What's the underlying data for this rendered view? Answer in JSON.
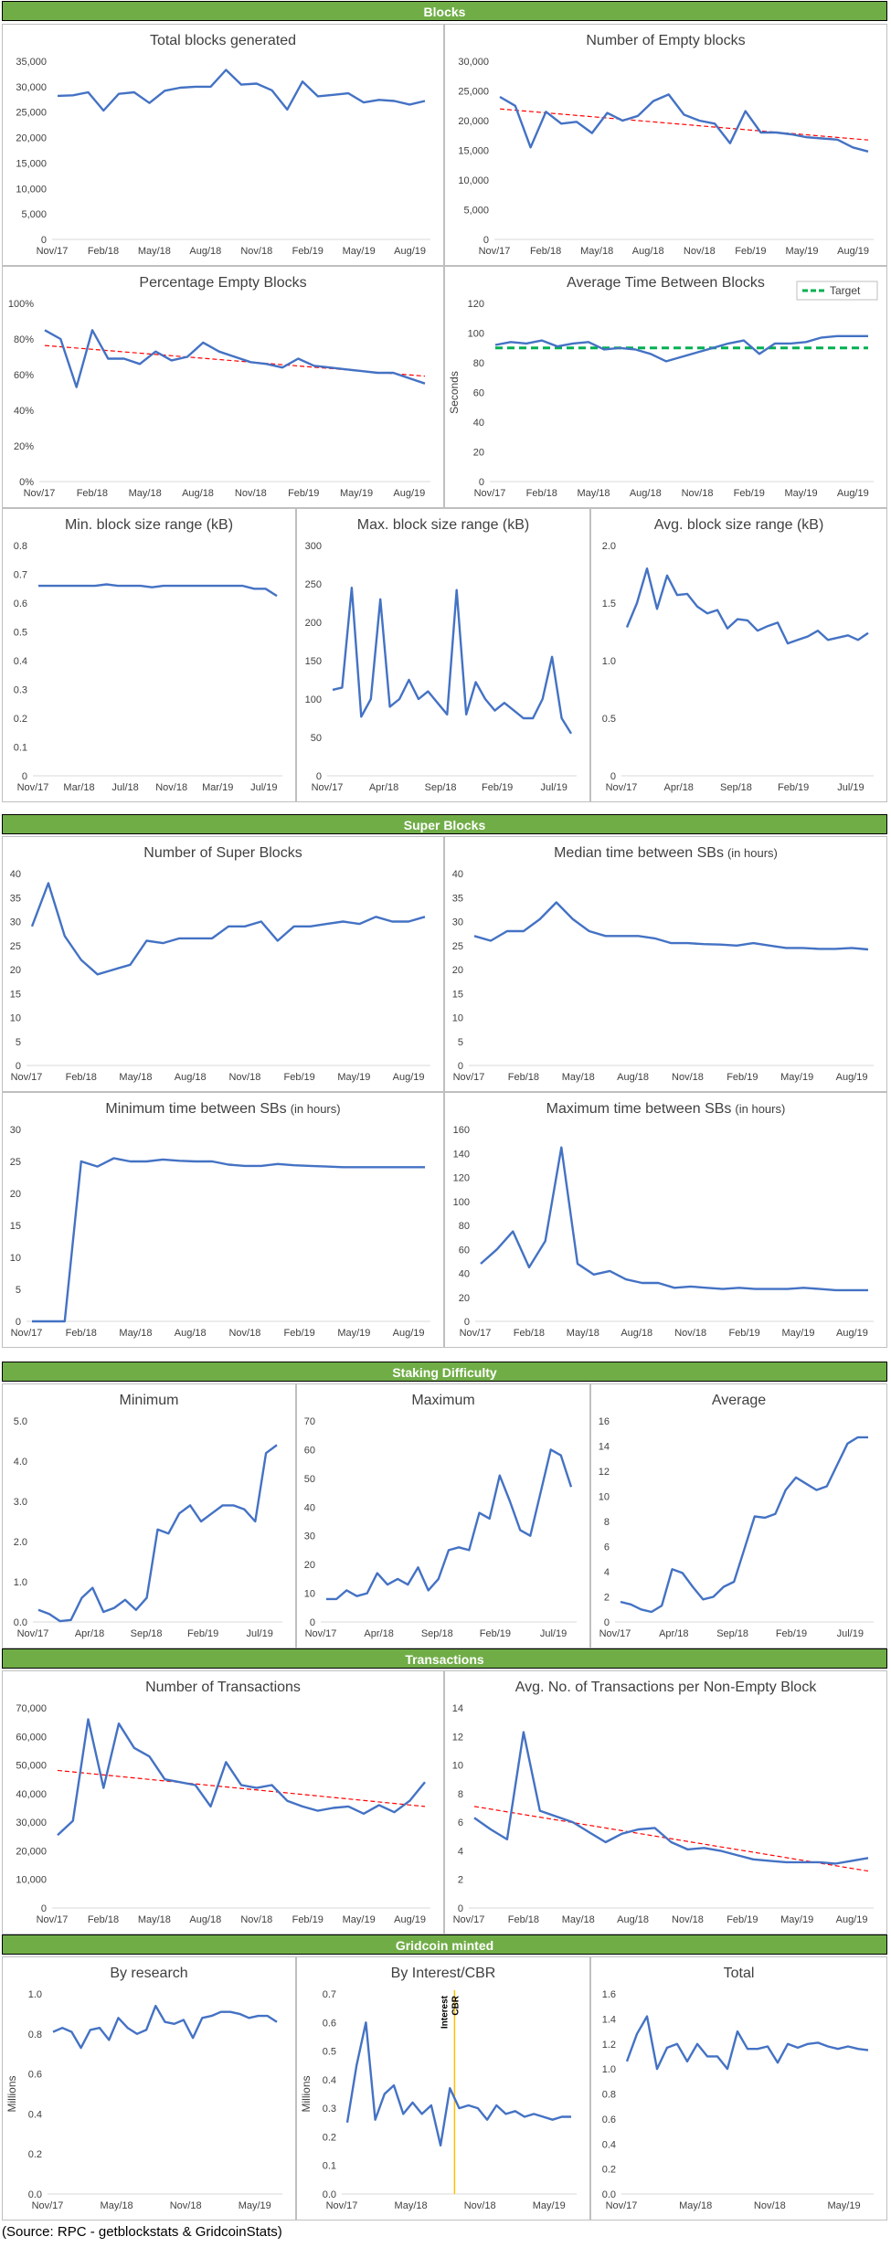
{
  "sections": [
    {
      "title": "Blocks"
    },
    {
      "title": "Super Blocks"
    },
    {
      "title": "Staking Difficulty"
    },
    {
      "title": "Transactions"
    },
    {
      "title": "Gridcoin minted"
    }
  ],
  "source": "(Source: RPC - getblockstats & GridcoinStats)",
  "colors": {
    "line": "#4472c4",
    "trend": "#ff0000",
    "target": "#00b050",
    "cbr": "#ffc000",
    "header": "#70ad47"
  },
  "chart_data": [
    {
      "id": "total_blocks",
      "type": "line",
      "title": "Total blocks generated",
      "subtitle": "",
      "ylabel": "",
      "yticks": [
        "0",
        "5,000",
        "10,000",
        "15,000",
        "20,000",
        "25,000",
        "30,000",
        "35,000"
      ],
      "ylim": [
        0,
        35000
      ],
      "xticks": [
        "Nov/17",
        "Feb/18",
        "May/18",
        "Aug/18",
        "Nov/18",
        "Feb/19",
        "May/19",
        "Aug/19"
      ],
      "trend": false,
      "values": [
        28200,
        28300,
        28900,
        25300,
        28600,
        28900,
        26800,
        29200,
        29800,
        30000,
        30000,
        33300,
        30400,
        30600,
        29300,
        25500,
        31000,
        28100,
        28400,
        28700,
        26900,
        27400,
        27200,
        26500,
        27200
      ]
    },
    {
      "id": "empty_blocks",
      "type": "line",
      "title": "Number of Empty blocks",
      "subtitle": "",
      "ylabel": "",
      "yticks": [
        "0",
        "5,000",
        "10,000",
        "15,000",
        "20,000",
        "25,000",
        "30,000"
      ],
      "ylim": [
        0,
        30000
      ],
      "xticks": [
        "Nov/17",
        "Feb/18",
        "May/18",
        "Aug/18",
        "Nov/18",
        "Feb/19",
        "May/19",
        "Aug/19"
      ],
      "trend": true,
      "values": [
        24000,
        22500,
        15500,
        21500,
        19500,
        19800,
        17900,
        21300,
        20000,
        20800,
        23300,
        24400,
        21000,
        20000,
        19500,
        16200,
        21600,
        18000,
        18000,
        17700,
        17200,
        17000,
        16800,
        15500,
        14800
      ]
    },
    {
      "id": "pct_empty",
      "type": "line",
      "title": "Percentage Empty Blocks",
      "subtitle": "",
      "ylabel": "",
      "yticks": [
        "0%",
        "20%",
        "40%",
        "60%",
        "80%",
        "100%"
      ],
      "ylim": [
        0,
        100
      ],
      "xticks": [
        "Nov/17",
        "Feb/18",
        "May/18",
        "Aug/18",
        "Nov/18",
        "Feb/19",
        "May/19",
        "Aug/19"
      ],
      "trend": true,
      "values": [
        85,
        80,
        53,
        85,
        69,
        69,
        66,
        73,
        68,
        70,
        78,
        73,
        70,
        67,
        66,
        64,
        69,
        65,
        64,
        63,
        62,
        61,
        61,
        58,
        55
      ]
    },
    {
      "id": "avg_time",
      "type": "line",
      "title": "Average Time Between Blocks",
      "subtitle": "",
      "ylabel": "Seconds",
      "yticks": [
        "0",
        "20",
        "40",
        "60",
        "80",
        "100",
        "120"
      ],
      "ylim": [
        0,
        120
      ],
      "xticks": [
        "Nov/17",
        "Feb/18",
        "May/18",
        "Aug/18",
        "Nov/18",
        "Feb/19",
        "May/19",
        "Aug/19"
      ],
      "trend": false,
      "target": 90,
      "legend": "Target",
      "values": [
        92,
        94,
        93,
        95,
        91,
        93,
        94,
        89,
        90,
        89,
        86,
        81,
        84,
        87,
        90,
        93,
        95,
        86,
        93,
        93,
        94,
        97,
        98,
        98,
        98
      ]
    },
    {
      "id": "min_block",
      "type": "line",
      "title": "Min. block size range (kB)",
      "subtitle": "",
      "ylabel": "",
      "yticks": [
        "0",
        "0.1",
        "0.2",
        "0.3",
        "0.4",
        "0.5",
        "0.6",
        "0.7",
        "0.8"
      ],
      "ylim": [
        0,
        0.8
      ],
      "xticks": [
        "Nov/17",
        "Mar/18",
        "Jul/18",
        "Nov/18",
        "Mar/19",
        "Jul/19"
      ],
      "trend": false,
      "values": [
        0.66,
        0.66,
        0.66,
        0.66,
        0.66,
        0.66,
        0.665,
        0.66,
        0.66,
        0.66,
        0.655,
        0.66,
        0.66,
        0.66,
        0.66,
        0.66,
        0.66,
        0.66,
        0.66,
        0.65,
        0.65,
        0.625
      ]
    },
    {
      "id": "max_block",
      "type": "line",
      "title": "Max. block size range (kB)",
      "subtitle": "",
      "ylabel": "",
      "yticks": [
        "0",
        "50",
        "100",
        "150",
        "200",
        "250",
        "300"
      ],
      "ylim": [
        0,
        300
      ],
      "xticks": [
        "Nov/17",
        "Apr/18",
        "Sep/18",
        "Feb/19",
        "Jul/19"
      ],
      "trend": false,
      "values": [
        112,
        115,
        245,
        77,
        100,
        230,
        90,
        100,
        125,
        100,
        110,
        95,
        80,
        242,
        80,
        122,
        100,
        85,
        95,
        85,
        75,
        75,
        100,
        155,
        75,
        55
      ]
    },
    {
      "id": "avg_block",
      "type": "line",
      "title": "Avg. block size range (kB)",
      "subtitle": "",
      "ylabel": "",
      "yticks": [
        "0",
        "0.5",
        "1.0",
        "1.5",
        "2.0"
      ],
      "ylim": [
        0,
        2.0
      ],
      "xticks": [
        "Nov/17",
        "Apr/18",
        "Sep/18",
        "Feb/19",
        "Jul/19"
      ],
      "trend": false,
      "values": [
        1.29,
        1.5,
        1.8,
        1.45,
        1.74,
        1.57,
        1.58,
        1.47,
        1.41,
        1.44,
        1.28,
        1.36,
        1.35,
        1.26,
        1.3,
        1.33,
        1.15,
        1.18,
        1.21,
        1.26,
        1.18,
        1.2,
        1.22,
        1.18,
        1.24
      ]
    },
    {
      "id": "num_sb",
      "type": "line",
      "title": "Number of Super Blocks",
      "subtitle": "",
      "ylabel": "",
      "yticks": [
        "0",
        "5",
        "10",
        "15",
        "20",
        "25",
        "30",
        "35",
        "40"
      ],
      "ylim": [
        0,
        40
      ],
      "xticks": [
        "Nov/17",
        "Feb/18",
        "May/18",
        "Aug/18",
        "Nov/18",
        "Feb/19",
        "May/19",
        "Aug/19"
      ],
      "trend": false,
      "values": [
        29,
        38,
        27,
        22,
        19,
        20,
        21,
        26,
        25.5,
        26.5,
        26.5,
        26.5,
        29,
        29,
        30,
        26,
        29,
        29,
        29.5,
        30,
        29.5,
        31,
        30,
        30,
        31
      ]
    },
    {
      "id": "median_sb",
      "type": "line",
      "title": "Median time between SBs",
      "subtitle": "(in hours)",
      "ylabel": "",
      "yticks": [
        "0",
        "5",
        "10",
        "15",
        "20",
        "25",
        "30",
        "35",
        "40"
      ],
      "ylim": [
        0,
        40
      ],
      "xticks": [
        "Nov/17",
        "Feb/18",
        "May/18",
        "Aug/18",
        "Nov/18",
        "Feb/19",
        "May/19",
        "Aug/19"
      ],
      "trend": false,
      "values": [
        27,
        26,
        28,
        28,
        30.5,
        34,
        30.5,
        28,
        27,
        27,
        27,
        26.5,
        25.5,
        25.5,
        25.3,
        25.2,
        25,
        25.5,
        25,
        24.5,
        24.5,
        24.3,
        24.3,
        24.5,
        24.2
      ]
    },
    {
      "id": "min_sb",
      "type": "line",
      "title": "Minimum time between SBs",
      "subtitle": "(in hours)",
      "ylabel": "",
      "yticks": [
        "0",
        "5",
        "10",
        "15",
        "20",
        "25",
        "30"
      ],
      "ylim": [
        0,
        30
      ],
      "xticks": [
        "Nov/17",
        "Feb/18",
        "May/18",
        "Aug/18",
        "Nov/18",
        "Feb/19",
        "May/19",
        "Aug/19"
      ],
      "trend": false,
      "values": [
        0,
        0,
        0,
        25,
        24.2,
        25.5,
        25,
        25,
        25.3,
        25.1,
        25,
        25,
        24.5,
        24.3,
        24.3,
        24.6,
        24.4,
        24.3,
        24.2,
        24.1,
        24.1,
        24.1,
        24.1,
        24.1,
        24.1
      ]
    },
    {
      "id": "max_sb",
      "type": "line",
      "title": "Maximum time  between SBs",
      "subtitle": "(in hours)",
      "ylabel": "",
      "yticks": [
        "0",
        "20",
        "40",
        "60",
        "80",
        "100",
        "120",
        "140",
        "160"
      ],
      "ylim": [
        0,
        160
      ],
      "xticks": [
        "Nov/17",
        "Feb/18",
        "May/18",
        "Aug/18",
        "Nov/18",
        "Feb/19",
        "May/19",
        "Aug/19"
      ],
      "trend": false,
      "values": [
        48,
        60,
        75,
        45,
        67,
        145,
        48,
        39,
        42,
        35,
        32,
        32,
        28,
        29,
        28,
        27,
        28,
        27,
        27,
        27,
        28,
        27,
        26,
        26,
        26
      ]
    },
    {
      "id": "stake_min",
      "type": "line",
      "title": "Minimum",
      "subtitle": "",
      "ylabel": "",
      "yticks": [
        "0.0",
        "1.0",
        "2.0",
        "3.0",
        "4.0",
        "5.0"
      ],
      "ylim": [
        0,
        5.0
      ],
      "xticks": [
        "Nov/17",
        "Apr/18",
        "Sep/18",
        "Feb/19",
        "Jul/19"
      ],
      "trend": false,
      "values": [
        0.3,
        0.2,
        0.02,
        0.05,
        0.6,
        0.85,
        0.25,
        0.35,
        0.55,
        0.3,
        0.6,
        2.3,
        2.2,
        2.7,
        2.9,
        2.5,
        2.7,
        2.9,
        2.9,
        2.8,
        2.5,
        4.2,
        4.4
      ]
    },
    {
      "id": "stake_max",
      "type": "line",
      "title": "Maximum",
      "subtitle": "",
      "ylabel": "",
      "yticks": [
        "0",
        "10",
        "20",
        "30",
        "40",
        "50",
        "60",
        "70"
      ],
      "ylim": [
        0,
        70
      ],
      "xticks": [
        "Nov/17",
        "Apr/18",
        "Sep/18",
        "Feb/19",
        "Jul/19"
      ],
      "trend": false,
      "values": [
        8,
        8,
        11,
        9,
        10,
        17,
        13,
        15,
        13,
        19,
        11,
        15,
        25,
        26,
        25,
        38,
        36,
        51,
        42,
        32,
        30,
        45,
        60,
        58,
        47
      ]
    },
    {
      "id": "stake_avg",
      "type": "line",
      "title": "Average",
      "subtitle": "",
      "ylabel": "",
      "yticks": [
        "0",
        "2",
        "4",
        "6",
        "8",
        "10",
        "12",
        "14",
        "16"
      ],
      "ylim": [
        0,
        16
      ],
      "xticks": [
        "Nov/17",
        "Apr/18",
        "Sep/18",
        "Feb/19",
        "Jul/19"
      ],
      "trend": false,
      "values": [
        1.6,
        1.4,
        1.0,
        0.8,
        1.3,
        4.2,
        3.9,
        2.8,
        1.8,
        2.0,
        2.8,
        3.2,
        5.8,
        8.4,
        8.3,
        8.6,
        10.5,
        11.5,
        11.0,
        10.5,
        10.8,
        12.5,
        14.2,
        14.7,
        14.7
      ]
    },
    {
      "id": "num_tx",
      "type": "line",
      "title": "Number of Transactions",
      "subtitle": "",
      "ylabel": "",
      "yticks": [
        "0",
        "10,000",
        "20,000",
        "30,000",
        "40,000",
        "50,000",
        "60,000",
        "70,000"
      ],
      "ylim": [
        0,
        70000
      ],
      "xticks": [
        "Nov/17",
        "Feb/18",
        "May/18",
        "Aug/18",
        "Nov/18",
        "Feb/19",
        "May/19",
        "Aug/19"
      ],
      "trend": true,
      "values": [
        25500,
        30500,
        66000,
        42000,
        64500,
        56000,
        53000,
        45000,
        44000,
        43000,
        35500,
        51000,
        43000,
        42000,
        43000,
        37500,
        35500,
        34000,
        35000,
        35500,
        33000,
        36000,
        33500,
        37500,
        44000
      ]
    },
    {
      "id": "avg_tx",
      "type": "line",
      "title": "Avg. No. of Transactions per Non-Empty Block",
      "subtitle": "",
      "ylabel": "",
      "yticks": [
        "0",
        "2",
        "4",
        "6",
        "8",
        "10",
        "12",
        "14"
      ],
      "ylim": [
        0,
        14
      ],
      "xticks": [
        "Nov/17",
        "Feb/18",
        "May/18",
        "Aug/18",
        "Nov/18",
        "Feb/19",
        "May/19",
        "Aug/19"
      ],
      "trend": true,
      "values": [
        6.3,
        5.5,
        4.8,
        12.3,
        6.8,
        6.4,
        6.0,
        5.3,
        4.6,
        5.2,
        5.5,
        5.6,
        4.6,
        4.1,
        4.2,
        4.0,
        3.7,
        3.4,
        3.3,
        3.2,
        3.2,
        3.2,
        3.1,
        3.3,
        3.5
      ]
    },
    {
      "id": "by_research",
      "type": "line",
      "title": "By research",
      "subtitle": "",
      "ylabel": "Millions",
      "yticks": [
        "0.0",
        "0.2",
        "0.4",
        "0.6",
        "0.8",
        "1.0"
      ],
      "ylim": [
        0,
        1.0
      ],
      "xticks": [
        "Nov/17",
        "May/18",
        "Nov/18",
        "May/19"
      ],
      "trend": false,
      "values": [
        0.81,
        0.83,
        0.81,
        0.73,
        0.82,
        0.83,
        0.77,
        0.88,
        0.83,
        0.8,
        0.82,
        0.94,
        0.86,
        0.85,
        0.87,
        0.78,
        0.88,
        0.89,
        0.91,
        0.91,
        0.9,
        0.88,
        0.89,
        0.89,
        0.86
      ]
    },
    {
      "id": "by_interest",
      "type": "line",
      "title": "By Interest/CBR",
      "subtitle": "",
      "ylabel": "Millions",
      "yticks": [
        "0.0",
        "0.1",
        "0.2",
        "0.3",
        "0.4",
        "0.5",
        "0.6",
        "0.7"
      ],
      "ylim": [
        0,
        0.7
      ],
      "xticks": [
        "Nov/17",
        "May/18",
        "Nov/18",
        "May/19"
      ],
      "trend": false,
      "marker_labels": [
        "Interest",
        "CBR"
      ],
      "values": [
        0.25,
        0.45,
        0.6,
        0.26,
        0.35,
        0.38,
        0.28,
        0.32,
        0.28,
        0.31,
        0.17,
        0.37,
        0.3,
        0.31,
        0.3,
        0.26,
        0.31,
        0.28,
        0.29,
        0.27,
        0.28,
        0.27,
        0.26,
        0.27,
        0.27
      ]
    },
    {
      "id": "total_minted",
      "type": "line",
      "title": "Total",
      "subtitle": "",
      "ylabel": "",
      "yticks": [
        "0.0",
        "0.2",
        "0.4",
        "0.6",
        "0.8",
        "1.0",
        "1.2",
        "1.4",
        "1.6"
      ],
      "ylim": [
        0,
        1.6
      ],
      "xticks": [
        "Nov/17",
        "May/18",
        "Nov/18",
        "May/19"
      ],
      "trend": false,
      "values": [
        1.06,
        1.28,
        1.42,
        1.0,
        1.17,
        1.2,
        1.06,
        1.2,
        1.1,
        1.1,
        1.0,
        1.3,
        1.16,
        1.16,
        1.18,
        1.05,
        1.2,
        1.17,
        1.2,
        1.21,
        1.18,
        1.16,
        1.18,
        1.16,
        1.15
      ]
    }
  ]
}
